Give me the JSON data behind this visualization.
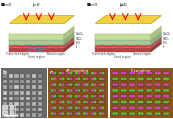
{
  "bg_color": "#ffffff",
  "top_left_v": "V₀=0",
  "top_left_j": "J=0",
  "top_right_v": "V₀<0",
  "top_right_j": "J≠0",
  "label_a": "a",
  "label_b": "b",
  "label_c": "c",
  "af_coupling_title": "AF-coupling",
  "f_coupling_title": "F-coupling",
  "scale_bar_text": "80 nm",
  "layer_labels": [
    [
      "GeO₂",
      "#d4e8b0"
    ],
    [
      "SiO₂",
      "#b8d4a0"
    ],
    [
      "IrO",
      "#c87878"
    ],
    [
      "Ir",
      "#b05050"
    ]
  ],
  "top_plate_color": "#f0d850",
  "side_color": "#e8e8a0",
  "dot_green": "#44cc44",
  "dot_magenta": "#cc44cc",
  "dot_pink": "#ee88aa",
  "afm_bg": "#8B5520",
  "sem_bg": "#686868"
}
